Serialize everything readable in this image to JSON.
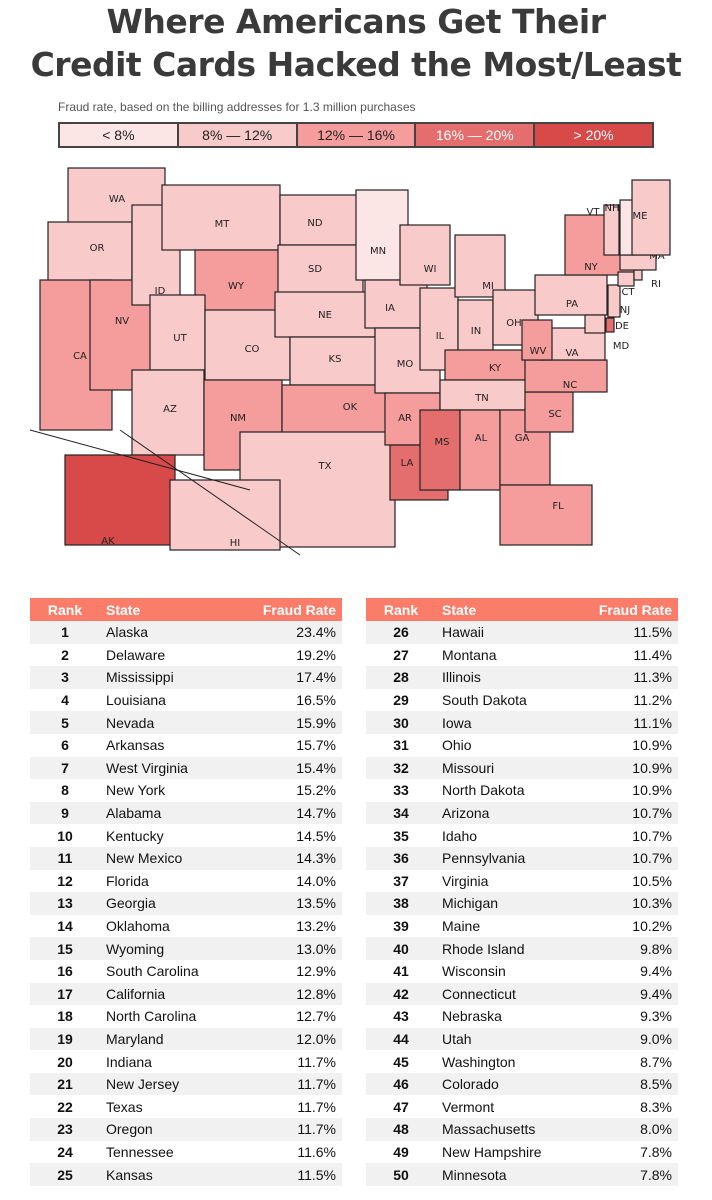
{
  "title_line1": "Where Americans Get Their",
  "title_line2": "Credit Cards Hacked the Most/Least",
  "subtitle": "Fraud rate, based on the billing addresses for 1.3 million purchases",
  "legend": [
    {
      "label": "< 8%",
      "color": "#fce5e5",
      "text": "#222"
    },
    {
      "label": "8% — 12%",
      "color": "#f9caca",
      "text": "#222"
    },
    {
      "label": "12% — 16%",
      "color": "#f59c9c",
      "text": "#222"
    },
    {
      "label": "16% — 20%",
      "color": "#e46d6d",
      "text": "#fff"
    },
    {
      "label": "> 20%",
      "color": "#d84a4a",
      "text": "#fff"
    }
  ],
  "map": {
    "states": [
      {
        "abbr": "WA",
        "bucket": 1
      },
      {
        "abbr": "OR",
        "bucket": 1
      },
      {
        "abbr": "CA",
        "bucket": 2
      },
      {
        "abbr": "NV",
        "bucket": 2
      },
      {
        "abbr": "ID",
        "bucket": 1
      },
      {
        "abbr": "MT",
        "bucket": 1
      },
      {
        "abbr": "WY",
        "bucket": 2
      },
      {
        "abbr": "UT",
        "bucket": 1
      },
      {
        "abbr": "CO",
        "bucket": 1
      },
      {
        "abbr": "AZ",
        "bucket": 1
      },
      {
        "abbr": "NM",
        "bucket": 2
      },
      {
        "abbr": "ND",
        "bucket": 1
      },
      {
        "abbr": "SD",
        "bucket": 1
      },
      {
        "abbr": "NE",
        "bucket": 1
      },
      {
        "abbr": "KS",
        "bucket": 1
      },
      {
        "abbr": "OK",
        "bucket": 2
      },
      {
        "abbr": "TX",
        "bucket": 1
      },
      {
        "abbr": "MN",
        "bucket": 0
      },
      {
        "abbr": "IA",
        "bucket": 1
      },
      {
        "abbr": "MO",
        "bucket": 1
      },
      {
        "abbr": "AR",
        "bucket": 2
      },
      {
        "abbr": "LA",
        "bucket": 3
      },
      {
        "abbr": "WI",
        "bucket": 1
      },
      {
        "abbr": "IL",
        "bucket": 1
      },
      {
        "abbr": "MI",
        "bucket": 1
      },
      {
        "abbr": "IN",
        "bucket": 1
      },
      {
        "abbr": "OH",
        "bucket": 1
      },
      {
        "abbr": "KY",
        "bucket": 2
      },
      {
        "abbr": "TN",
        "bucket": 1
      },
      {
        "abbr": "MS",
        "bucket": 3
      },
      {
        "abbr": "AL",
        "bucket": 2
      },
      {
        "abbr": "GA",
        "bucket": 2
      },
      {
        "abbr": "FL",
        "bucket": 2
      },
      {
        "abbr": "SC",
        "bucket": 2
      },
      {
        "abbr": "NC",
        "bucket": 2
      },
      {
        "abbr": "VA",
        "bucket": 1
      },
      {
        "abbr": "WV",
        "bucket": 2
      },
      {
        "abbr": "PA",
        "bucket": 1
      },
      {
        "abbr": "NY",
        "bucket": 2
      },
      {
        "abbr": "NJ",
        "bucket": 1
      },
      {
        "abbr": "DE",
        "bucket": 3
      },
      {
        "abbr": "MD",
        "bucket": 1
      },
      {
        "abbr": "CT",
        "bucket": 1
      },
      {
        "abbr": "RI",
        "bucket": 1
      },
      {
        "abbr": "MA",
        "bucket": 1
      },
      {
        "abbr": "VT",
        "bucket": 1
      },
      {
        "abbr": "NH",
        "bucket": 0
      },
      {
        "abbr": "ME",
        "bucket": 1
      },
      {
        "abbr": "AK",
        "bucket": 4
      },
      {
        "abbr": "HI",
        "bucket": 1
      }
    ]
  },
  "table": {
    "headers": {
      "rank": "Rank",
      "state": "State",
      "rate": "Fraud Rate"
    },
    "left": [
      [
        "1",
        "Alaska",
        "23.4%"
      ],
      [
        "2",
        "Delaware",
        "19.2%"
      ],
      [
        "3",
        "Mississippi",
        "17.4%"
      ],
      [
        "4",
        "Louisiana",
        "16.5%"
      ],
      [
        "5",
        "Nevada",
        "15.9%"
      ],
      [
        "6",
        "Arkansas",
        "15.7%"
      ],
      [
        "7",
        "West Virginia",
        "15.4%"
      ],
      [
        "8",
        "New York",
        "15.2%"
      ],
      [
        "9",
        "Alabama",
        "14.7%"
      ],
      [
        "10",
        "Kentucky",
        "14.5%"
      ],
      [
        "11",
        "New Mexico",
        "14.3%"
      ],
      [
        "12",
        "Florida",
        "14.0%"
      ],
      [
        "13",
        "Georgia",
        "13.5%"
      ],
      [
        "14",
        "Oklahoma",
        "13.2%"
      ],
      [
        "15",
        "Wyoming",
        "13.0%"
      ],
      [
        "16",
        "South Carolina",
        "12.9%"
      ],
      [
        "17",
        "California",
        "12.8%"
      ],
      [
        "18",
        "North Carolina",
        "12.7%"
      ],
      [
        "19",
        "Maryland",
        "12.0%"
      ],
      [
        "20",
        "Indiana",
        "11.7%"
      ],
      [
        "21",
        "New Jersey",
        "11.7%"
      ],
      [
        "22",
        "Texas",
        "11.7%"
      ],
      [
        "23",
        "Oregon",
        "11.7%"
      ],
      [
        "24",
        "Tennessee",
        "11.6%"
      ],
      [
        "25",
        "Kansas",
        "11.5%"
      ]
    ],
    "right": [
      [
        "26",
        "Hawaii",
        "11.5%"
      ],
      [
        "27",
        "Montana",
        "11.4%"
      ],
      [
        "28",
        "Illinois",
        "11.3%"
      ],
      [
        "29",
        "South Dakota",
        "11.2%"
      ],
      [
        "30",
        "Iowa",
        "11.1%"
      ],
      [
        "31",
        "Ohio",
        "10.9%"
      ],
      [
        "32",
        "Missouri",
        "10.9%"
      ],
      [
        "33",
        "North Dakota",
        "10.9%"
      ],
      [
        "34",
        "Arizona",
        "10.7%"
      ],
      [
        "35",
        "Idaho",
        "10.7%"
      ],
      [
        "36",
        "Pennsylvania",
        "10.7%"
      ],
      [
        "37",
        "Virginia",
        "10.5%"
      ],
      [
        "38",
        "Michigan",
        "10.3%"
      ],
      [
        "39",
        "Maine",
        "10.2%"
      ],
      [
        "40",
        "Rhode Island",
        "9.8%"
      ],
      [
        "41",
        "Wisconsin",
        "9.4%"
      ],
      [
        "42",
        "Connecticut",
        "9.4%"
      ],
      [
        "43",
        "Nebraska",
        "9.3%"
      ],
      [
        "44",
        "Utah",
        "9.0%"
      ],
      [
        "45",
        "Washington",
        "8.7%"
      ],
      [
        "46",
        "Colorado",
        "8.5%"
      ],
      [
        "47",
        "Vermont",
        "8.3%"
      ],
      [
        "48",
        "Massachusetts",
        "8.0%"
      ],
      [
        "49",
        "New Hampshire",
        "7.8%"
      ],
      [
        "50",
        "Minnesota",
        "7.8%"
      ]
    ]
  }
}
